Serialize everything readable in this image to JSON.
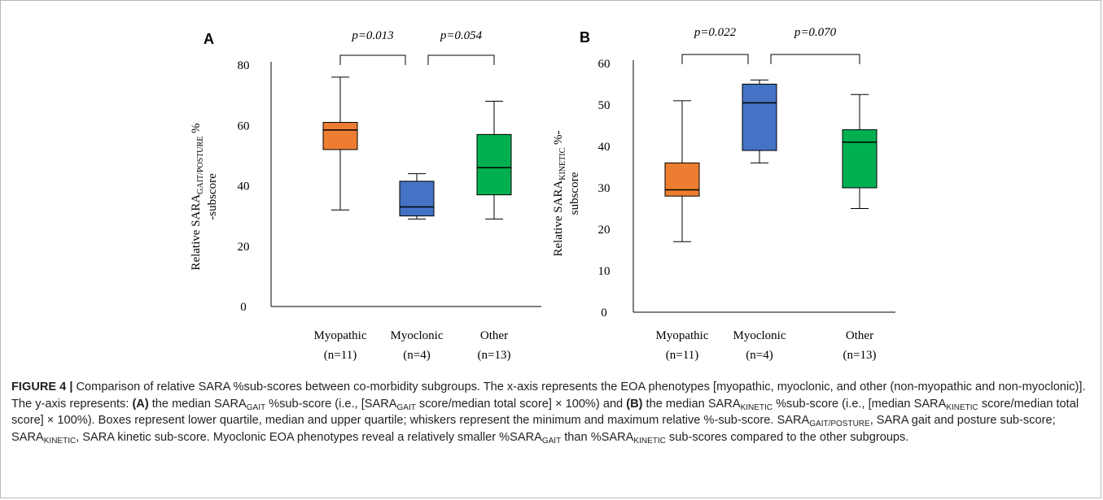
{
  "chart_data": [
    {
      "type": "box",
      "panel_label": "A",
      "ylabel_parts": [
        "Relative SARA",
        "GAIT/POSTURE",
        " %",
        "-subscore"
      ],
      "ylim": [
        0,
        80
      ],
      "yticks": [
        0,
        20,
        40,
        60,
        80
      ],
      "categories": [
        {
          "name": "Myopathic",
          "n": "(n=11)",
          "min": 32,
          "q1": 52,
          "median": 58.5,
          "q3": 61,
          "max": 76,
          "color": "#ED7D31"
        },
        {
          "name": "Myoclonic",
          "n": "(n=4)",
          "min": 29,
          "q1": 30,
          "median": 33,
          "q3": 41.5,
          "max": 44,
          "color": "#4472C4"
        },
        {
          "name": "Other",
          "n": "(n=13)",
          "min": 29,
          "q1": 37,
          "median": 46,
          "q3": 57,
          "max": 68,
          "color": "#00B050"
        }
      ],
      "brackets": [
        {
          "from": 0,
          "to": 1,
          "label": "p=0.013"
        },
        {
          "from": 1,
          "to": 2,
          "label": "p=0.054"
        }
      ]
    },
    {
      "type": "box",
      "panel_label": "B",
      "ylabel_parts": [
        "Relative SARA",
        "KINETIC",
        " %-",
        "subscore"
      ],
      "ylim": [
        0,
        60
      ],
      "yticks": [
        0,
        10,
        20,
        30,
        40,
        50,
        60
      ],
      "categories": [
        {
          "name": "Myopathic",
          "n": "(n=11)",
          "min": 17,
          "q1": 28,
          "median": 29.5,
          "q3": 36,
          "max": 51,
          "color": "#ED7D31"
        },
        {
          "name": "Myoclonic",
          "n": "(n=4)",
          "min": 36,
          "q1": 39,
          "median": 50.5,
          "q3": 55,
          "max": 56,
          "color": "#4472C4"
        },
        {
          "name": "Other",
          "n": "(n=13)",
          "min": 25,
          "q1": 30,
          "median": 41,
          "q3": 44,
          "max": 52.5,
          "color": "#00B050"
        }
      ],
      "brackets": [
        {
          "from": 0,
          "to": 1,
          "label": "p=0.022"
        },
        {
          "from": 1,
          "to": 2,
          "label": "p=0.070"
        }
      ]
    }
  ],
  "caption": {
    "figure_label": "FIGURE 4 |",
    "t1": " Comparison of relative SARA %sub-scores between co-morbidity subgroups. The x-axis represents the EOA phenotypes [myopathic, myoclonic, and other (non-myopathic and non-myoclonic)]. The y-axis represents: ",
    "a_label": "(A)",
    "t2": " the median SARA",
    "s_gait": "GAIT",
    "t3": " %sub-score (i.e., [SARA",
    "t4": " score/median total score] × 100%) and ",
    "b_label": "(B)",
    "t5": " the median SARA",
    "s_kin": "KINETIC",
    "t6": " %sub-score (i.e., [median SARA",
    "t7": " score/median total score] × 100%). Boxes represent lower quartile, median and upper quartile; whiskers represent the minimum and maximum relative %-sub-score. SARA",
    "s_gp": "GAIT/POSTURE",
    "t8": ", SARA gait and posture sub-score; SARA",
    "t9": ", SARA kinetic sub-score. Myoclonic EOA phenotypes reveal a relatively smaller %SARA",
    "t10": " than %SARA",
    "t11": " sub-scores compared to the other subgroups."
  }
}
